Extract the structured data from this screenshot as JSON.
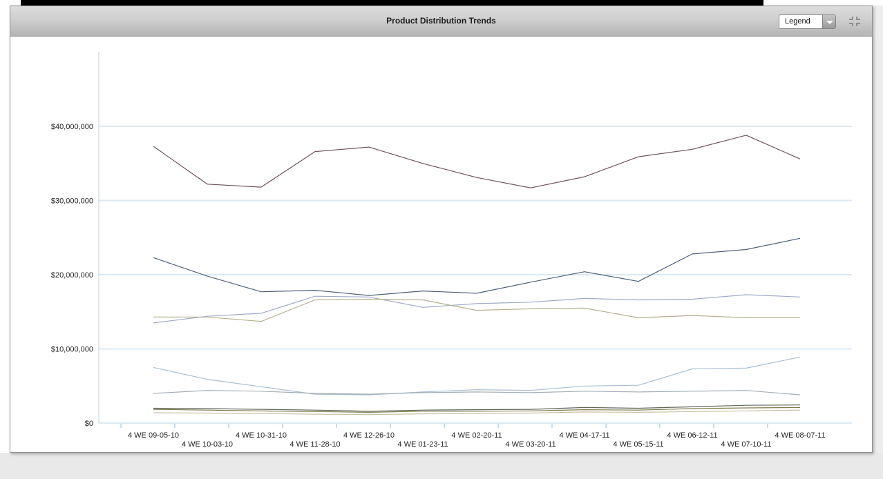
{
  "header": {
    "title": "Product Distribution Trends",
    "legend_label": "Legend",
    "icons": [
      "chevron-down-icon",
      "resize-corners-icon"
    ]
  },
  "ui_colors": {
    "header_gradient_top": "#dcdcdc",
    "header_gradient_bottom": "#b4b4b4",
    "panel_border": "#909090",
    "gridline": "#dce9f4",
    "axis_line": "#c2d2de",
    "tick": "#c9dcee",
    "label_text": "#222222",
    "page_band": "#e9e9e9"
  },
  "chart_data": {
    "type": "line",
    "title": "Product Distribution Trends",
    "xlabel": "",
    "ylabel": "",
    "grid": "horizontal",
    "legend_position": "collapsed-dropdown",
    "values_unit": "millions of USD",
    "ylim_millions": [
      0,
      45
    ],
    "y_tick_labels": [
      "$0",
      "$10,000,000",
      "$20,000,000",
      "$30,000,000",
      "$40,000,000"
    ],
    "y_tick_values_millions": [
      0,
      10,
      20,
      30,
      40
    ],
    "categories": [
      "4 WE 09-05-10",
      "4 WE 10-03-10",
      "4 WE 10-31-10",
      "4 WE 11-28-10",
      "4 WE 12-26-10",
      "4 WE 01-23-11",
      "4 WE 02-20-11",
      "4 WE 03-20-11",
      "4 WE 04-17-11",
      "4 WE 05-15-11",
      "4 WE 06-12-11",
      "4 WE 07-10-11",
      "4 WE 08-07-11"
    ],
    "series": [
      {
        "name": "maroon-line",
        "color": "#6e525c",
        "values": [
          37.3,
          32.2,
          31.8,
          36.6,
          37.2,
          35.0,
          33.1,
          31.7,
          33.2,
          35.9,
          36.9,
          38.8,
          35.6
        ]
      },
      {
        "name": "slate-blue-line",
        "color": "#506078",
        "values": [
          22.3,
          19.8,
          17.7,
          17.9,
          17.2,
          17.8,
          17.5,
          19.0,
          20.4,
          19.1,
          22.8,
          23.4,
          24.9
        ]
      },
      {
        "name": "periwinkle-line",
        "color": "#9fa8c8",
        "values": [
          13.5,
          14.4,
          14.8,
          17.1,
          17.0,
          15.6,
          16.1,
          16.3,
          16.8,
          16.6,
          16.7,
          17.3,
          17.0
        ]
      },
      {
        "name": "tan-line",
        "color": "#b3b08d",
        "values": [
          14.3,
          14.3,
          13.7,
          16.6,
          16.7,
          16.6,
          15.2,
          15.4,
          15.5,
          14.2,
          14.5,
          14.2,
          14.2
        ]
      },
      {
        "name": "light-blue-line",
        "color": "#a9bdd2",
        "values": [
          7.5,
          5.9,
          4.9,
          3.9,
          3.8,
          4.2,
          4.5,
          4.4,
          5.0,
          5.1,
          7.3,
          7.4,
          8.9
        ]
      },
      {
        "name": "gray-line",
        "color": "#a4adb4",
        "values": [
          4.0,
          4.4,
          4.3,
          4.0,
          3.9,
          4.1,
          4.2,
          4.1,
          4.3,
          4.2,
          4.3,
          4.4,
          3.8
        ]
      },
      {
        "name": "dark-gray-green-line",
        "color": "#5f665a",
        "values": [
          2.0,
          1.95,
          1.85,
          1.75,
          1.6,
          1.75,
          1.8,
          1.85,
          2.1,
          2.0,
          2.2,
          2.4,
          2.45
        ]
      },
      {
        "name": "olive-line",
        "color": "#7d7a4a",
        "values": [
          1.85,
          1.75,
          1.65,
          1.55,
          1.45,
          1.6,
          1.6,
          1.65,
          1.8,
          1.75,
          1.95,
          2.05,
          2.1
        ]
      },
      {
        "name": "light-tan-line",
        "color": "#c6c1a4",
        "values": [
          1.4,
          1.35,
          1.3,
          1.2,
          1.15,
          1.25,
          1.3,
          1.35,
          1.5,
          1.45,
          1.55,
          1.65,
          1.75
        ]
      }
    ]
  }
}
